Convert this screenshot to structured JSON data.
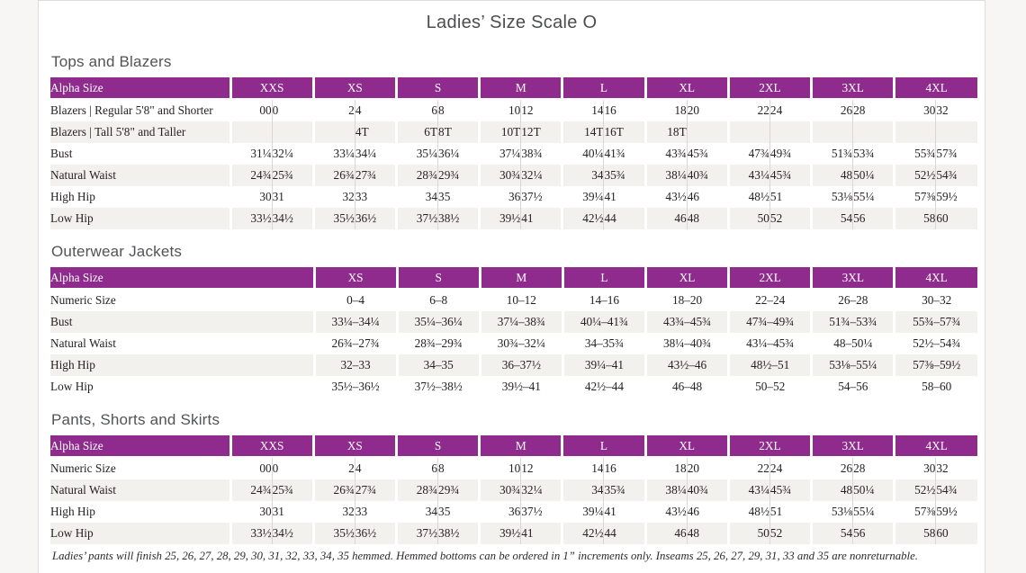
{
  "page": {
    "title": "Ladies’ Size Scale O"
  },
  "colors": {
    "header_purple": "#8e2b8d",
    "row_alt_gray": "#f3f1ee",
    "page_background": "#ffffff",
    "text": "#262223"
  },
  "sections": [
    {
      "heading": "Tops and Blazers",
      "type": "paired",
      "alpha_header": "Alpha Size",
      "sizes": [
        "XXS",
        "XS",
        "S",
        "M",
        "L",
        "XL",
        "2XL",
        "3XL",
        "4XL"
      ],
      "rows": [
        {
          "label": "Blazers  |  Regular 5'8\" and Shorter",
          "values": [
            "00",
            "0",
            "2",
            "4",
            "6",
            "8",
            "10",
            "12",
            "14",
            "16",
            "18",
            "20",
            "22",
            "24",
            "26",
            "28",
            "30",
            "32"
          ]
        },
        {
          "label": "Blazers  |  Tall 5'8\" and Taller",
          "values": [
            "",
            "",
            "",
            "4T",
            "6T",
            "8T",
            "10T",
            "12T",
            "14T",
            "16T",
            "18T",
            "",
            "",
            "",
            "",
            "",
            "",
            ""
          ]
        },
        {
          "label": "Bust",
          "values": [
            "31¼",
            "32¼",
            "33¼",
            "34¼",
            "35¼",
            "36¼",
            "37¼",
            "38¾",
            "40¼",
            "41¾",
            "43¾",
            "45¾",
            "47¾",
            "49¾",
            "51¾",
            "53¾",
            "55¾",
            "57¾"
          ]
        },
        {
          "label": "Natural Waist",
          "values": [
            "24¾",
            "25¾",
            "26¾",
            "27¾",
            "28¾",
            "29¾",
            "30¾",
            "32¼",
            "34",
            "35¾",
            "38¼",
            "40¾",
            "43¼",
            "45¾",
            "48",
            "50¼",
            "52½",
            "54¾"
          ]
        },
        {
          "label": "High Hip",
          "values": [
            "30",
            "31",
            "32",
            "33",
            "34",
            "35",
            "36",
            "37½",
            "39¼",
            "41",
            "43½",
            "46",
            "48½",
            "51",
            "53⅛",
            "55¼",
            "57⅜",
            "59½"
          ]
        },
        {
          "label": "Low Hip",
          "values": [
            "33½",
            "34½",
            "35½",
            "36½",
            "37½",
            "38½",
            "39½",
            "41",
            "42½",
            "44",
            "46",
            "48",
            "50",
            "52",
            "54",
            "56",
            "58",
            "60"
          ]
        }
      ]
    },
    {
      "heading": "Outerwear Jackets",
      "type": "single",
      "alpha_header": "Alpha Size",
      "sizes": [
        "XS",
        "S",
        "M",
        "L",
        "XL",
        "2XL",
        "3XL",
        "4XL"
      ],
      "rows": [
        {
          "label": "Numeric Size",
          "values": [
            "0–4",
            "6–8",
            "10–12",
            "14–16",
            "18–20",
            "22–24",
            "26–28",
            "30–32"
          ]
        },
        {
          "label": "Bust",
          "values": [
            "33¼–34¼",
            "35¼–36¼",
            "37¼–38¾",
            "40¼–41¾",
            "43¾–45¾",
            "47¾–49¾",
            "51¾–53¾",
            "55¾–57¾"
          ]
        },
        {
          "label": "Natural Waist",
          "values": [
            "26¾–27¾",
            "28¾–29¾",
            "30¾–32¼",
            "34–35¾",
            "38¼–40¾",
            "43¼–45¾",
            "48–50¼",
            "52½–54¾"
          ]
        },
        {
          "label": "High Hip",
          "values": [
            "32–33",
            "34–35",
            "36–37½",
            "39¼–41",
            "43½–46",
            "48½–51",
            "53⅛–55¼",
            "57⅜–59½"
          ]
        },
        {
          "label": "Low Hip",
          "values": [
            "35½–36½",
            "37½–38½",
            "39½–41",
            "42½–44",
            "46–48",
            "50–52",
            "54–56",
            "58–60"
          ]
        }
      ]
    },
    {
      "heading": "Pants, Shorts and Skirts",
      "type": "paired",
      "alpha_header": "Alpha Size",
      "sizes": [
        "XXS",
        "XS",
        "S",
        "M",
        "L",
        "XL",
        "2XL",
        "3XL",
        "4XL"
      ],
      "rows": [
        {
          "label": "Numeric Size",
          "values": [
            "00",
            "0",
            "2",
            "4",
            "6",
            "8",
            "10",
            "12",
            "14",
            "16",
            "18",
            "20",
            "22",
            "24",
            "26",
            "28",
            "30",
            "32"
          ]
        },
        {
          "label": "Natural Waist",
          "values": [
            "24¾",
            "25¾",
            "26¾",
            "27¾",
            "28¾",
            "29¾",
            "30¾",
            "32¼",
            "34",
            "35¾",
            "38¼",
            "40¾",
            "43¼",
            "45¾",
            "48",
            "50¼",
            "52½",
            "54¾"
          ]
        },
        {
          "label": "High Hip",
          "values": [
            "30",
            "31",
            "32",
            "33",
            "34",
            "35",
            "36",
            "37½",
            "39¼",
            "41",
            "43½",
            "46",
            "48½",
            "51",
            "53⅛",
            "55¼",
            "57⅜",
            "59½"
          ]
        },
        {
          "label": "Low Hip",
          "values": [
            "33½",
            "34½",
            "35½",
            "36½",
            "37½",
            "38½",
            "39½",
            "41",
            "42½",
            "44",
            "46",
            "48",
            "50",
            "52",
            "54",
            "56",
            "58",
            "60"
          ]
        }
      ]
    }
  ],
  "footnote": "Ladies’ pants will finish 25, 26, 27, 28, 29, 30, 31, 32, 33, 34, 35 hemmed. Hemmed bottoms can be ordered in 1” increments only. Inseams 25, 26, 27, 29, 31, 33 and 35 are nonreturnable."
}
